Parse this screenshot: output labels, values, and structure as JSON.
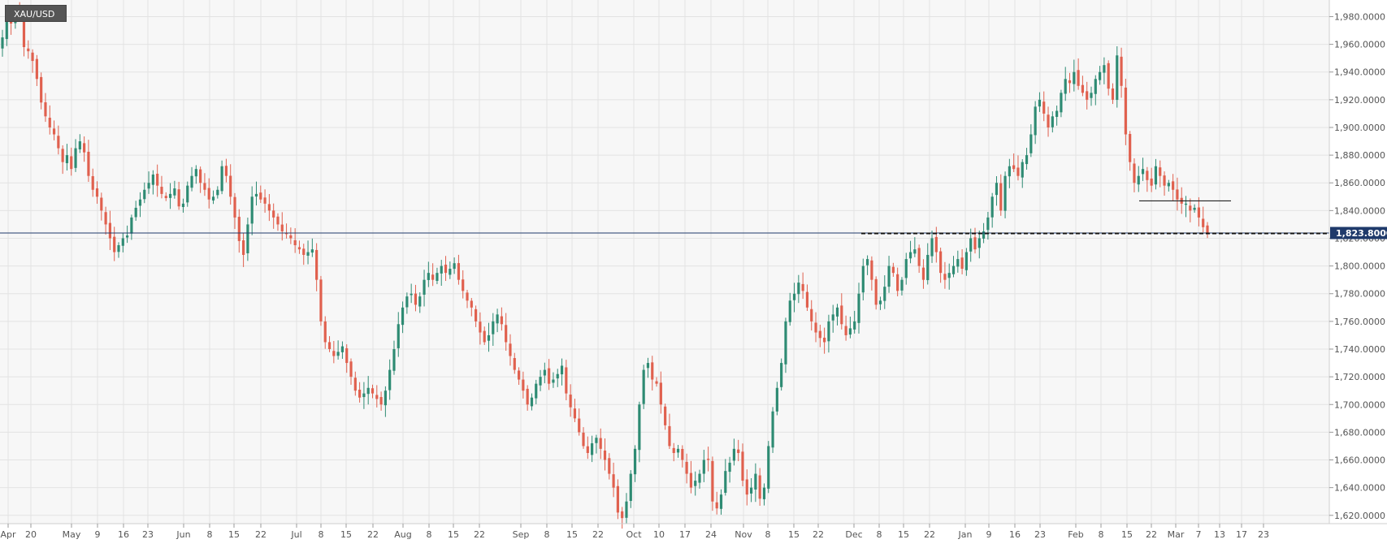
{
  "symbol": "XAU/USD",
  "current_price_label": "1,823.8000",
  "colors": {
    "up": "#2e8b73",
    "down": "#e0604e",
    "price_line": "#1f3a6b",
    "grid": "#e3e3e3",
    "plot_bg": "#f7f7f7"
  },
  "chart_data": {
    "type": "candlestick",
    "title": "XAU/USD",
    "x_ticks": [
      "Apr",
      "20",
      "May",
      "9",
      "16",
      "23",
      "Jun",
      "8",
      "15",
      "22",
      "Jul",
      "8",
      "15",
      "22",
      "Aug",
      "8",
      "15",
      "22",
      "Sep",
      "8",
      "15",
      "22",
      "Oct",
      "10",
      "17",
      "24",
      "Nov",
      "8",
      "15",
      "22",
      "Dec",
      "8",
      "15",
      "22",
      "Jan",
      "9",
      "16",
      "23",
      "Feb",
      "8",
      "15",
      "22",
      "Mar",
      "7",
      "13",
      "17",
      "23"
    ],
    "y_ticks": [
      "1,620.0000",
      "1,640.0000",
      "1,660.0000",
      "1,680.0000",
      "1,700.0000",
      "1,720.0000",
      "1,740.0000",
      "1,760.0000",
      "1,780.0000",
      "1,800.0000",
      "1,820.0000",
      "1,840.0000",
      "1,860.0000",
      "1,880.0000",
      "1,900.0000",
      "1,920.0000",
      "1,940.0000",
      "1,960.0000",
      "1,980.0000"
    ],
    "ylim": [
      1614,
      1992
    ],
    "current_price": 1823.8,
    "horizontal_levels": [
      {
        "price": 1823.8,
        "style": "solid"
      },
      {
        "price": 1823.5,
        "style": "dashed",
        "from_label": "22",
        "to": "end"
      },
      {
        "price": 1847,
        "style": "solid",
        "from_label": "8",
        "to_label": "Mar"
      }
    ],
    "closes": [
      1965,
      1978,
      1975,
      1983,
      1980,
      1958,
      1955,
      1948,
      1935,
      1918,
      1908,
      1900,
      1895,
      1885,
      1875,
      1880,
      1870,
      1885,
      1890,
      1882,
      1865,
      1855,
      1850,
      1840,
      1830,
      1820,
      1810,
      1815,
      1820,
      1822,
      1835,
      1842,
      1848,
      1855,
      1860,
      1866,
      1858,
      1852,
      1849,
      1852,
      1856,
      1843,
      1845,
      1858,
      1865,
      1870,
      1860,
      1855,
      1848,
      1850,
      1855,
      1872,
      1865,
      1850,
      1835,
      1818,
      1808,
      1830,
      1850,
      1852,
      1848,
      1845,
      1840,
      1835,
      1830,
      1825,
      1823,
      1820,
      1815,
      1812,
      1808,
      1810,
      1812,
      1790,
      1760,
      1745,
      1740,
      1735,
      1738,
      1742,
      1730,
      1720,
      1710,
      1705,
      1708,
      1712,
      1708,
      1704,
      1700,
      1710,
      1725,
      1740,
      1758,
      1770,
      1778,
      1780,
      1772,
      1778,
      1790,
      1795,
      1790,
      1795,
      1800,
      1795,
      1798,
      1802,
      1790,
      1782,
      1775,
      1770,
      1760,
      1752,
      1745,
      1750,
      1760,
      1765,
      1758,
      1745,
      1735,
      1725,
      1718,
      1710,
      1700,
      1705,
      1715,
      1720,
      1725,
      1715,
      1718,
      1722,
      1728,
      1708,
      1698,
      1690,
      1680,
      1670,
      1665,
      1672,
      1676,
      1668,
      1660,
      1650,
      1640,
      1622,
      1618,
      1630,
      1650,
      1668,
      1700,
      1725,
      1730,
      1718,
      1715,
      1700,
      1685,
      1670,
      1665,
      1668,
      1660,
      1650,
      1640,
      1645,
      1650,
      1660,
      1660,
      1630,
      1625,
      1635,
      1652,
      1658,
      1668,
      1665,
      1645,
      1635,
      1640,
      1650,
      1632,
      1640,
      1670,
      1695,
      1712,
      1730,
      1760,
      1775,
      1780,
      1788,
      1782,
      1770,
      1760,
      1752,
      1748,
      1745,
      1760,
      1765,
      1770,
      1758,
      1750,
      1755,
      1760,
      1780,
      1800,
      1805,
      1790,
      1772,
      1775,
      1785,
      1800,
      1795,
      1782,
      1790,
      1805,
      1810,
      1812,
      1800,
      1790,
      1808,
      1820,
      1810,
      1795,
      1790,
      1795,
      1800,
      1805,
      1798,
      1810,
      1820,
      1812,
      1820,
      1825,
      1835,
      1850,
      1860,
      1840,
      1865,
      1872,
      1870,
      1865,
      1875,
      1880,
      1895,
      1915,
      1920,
      1910,
      1900,
      1908,
      1912,
      1925,
      1935,
      1932,
      1940,
      1930,
      1925,
      1920,
      1925,
      1935,
      1940,
      1945,
      1928,
      1920,
      1952,
      1930,
      1895,
      1875,
      1860,
      1865,
      1870,
      1862,
      1858,
      1872,
      1865,
      1858,
      1860,
      1855,
      1848,
      1845,
      1845,
      1840,
      1842,
      1835,
      1828,
      1823.8
    ]
  }
}
